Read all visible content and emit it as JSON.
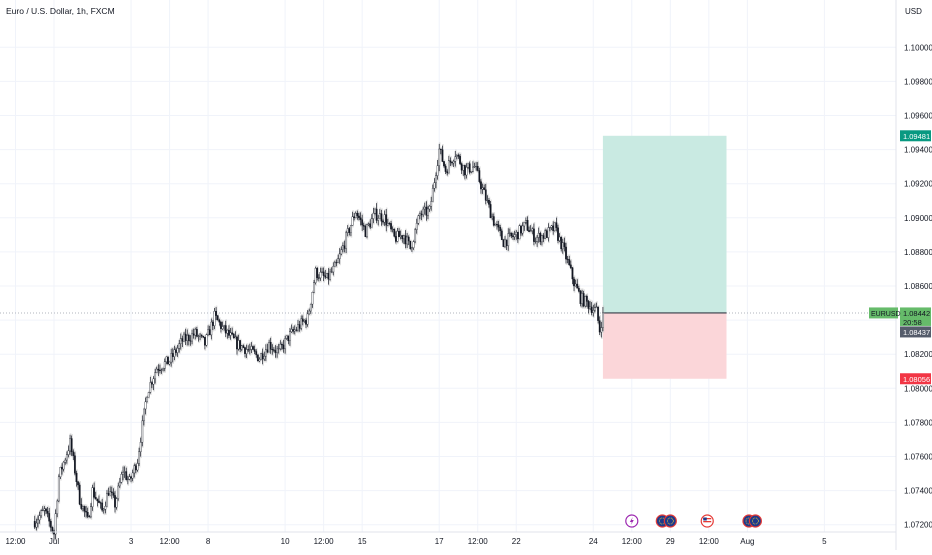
{
  "header": {
    "symbol_title": "Euro / U.S. Dollar, 1h, FXCM"
  },
  "currency_label": "USD",
  "colors": {
    "grid": "#f0f3fa",
    "axis_text": "#131722",
    "up_candle": "#ffffff",
    "down_candle": "#131722",
    "wick": "#131722",
    "ghost": "#c8c8c8",
    "profit_zone": "#c9eae2",
    "loss_zone": "#fbd6d9",
    "target_label_bg": "#089981",
    "stop_label_bg": "#f23645",
    "price_label_bg": "#66bb6a",
    "last_close_bg": "#555c6b",
    "entry_line": "#363a45"
  },
  "chart_data": {
    "type": "candlestick",
    "ylim": [
      1.0718,
      1.1022
    ],
    "y_ticks": [
      "1.10000",
      "1.09800",
      "1.09600",
      "1.09400",
      "1.09200",
      "1.09000",
      "1.08800",
      "1.08600",
      "1.08200",
      "1.08000",
      "1.07800",
      "1.07600",
      "1.07400",
      "1.07200"
    ],
    "x_ticks": [
      {
        "label": "12:00",
        "i": -12
      },
      {
        "label": "Jul",
        "i": 12
      },
      {
        "label": "3",
        "i": 60
      },
      {
        "label": "12:00",
        "i": 84
      },
      {
        "label": "8",
        "i": 108
      },
      {
        "label": "10",
        "i": 156
      },
      {
        "label": "12:00",
        "i": 180
      },
      {
        "label": "15",
        "i": 204
      },
      {
        "label": "17",
        "i": 252
      },
      {
        "label": "12:00",
        "i": 276
      },
      {
        "label": "22",
        "i": 300
      },
      {
        "label": "24",
        "i": 348
      },
      {
        "label": "12:00",
        "i": 372
      },
      {
        "label": "29",
        "i": 396
      },
      {
        "label": "12:00",
        "i": 420
      },
      {
        "label": "Aug",
        "i": 444
      },
      {
        "label": "5",
        "i": 492
      }
    ],
    "i_range": [
      -19,
      531
    ],
    "anchors": [
      [
        0,
        1.0722
      ],
      [
        6,
        1.0728
      ],
      [
        12,
        1.0715
      ],
      [
        15,
        1.0748
      ],
      [
        22,
        1.0768
      ],
      [
        25,
        1.0752
      ],
      [
        28,
        1.0735
      ],
      [
        33,
        1.0722
      ],
      [
        36,
        1.074
      ],
      [
        42,
        1.0728
      ],
      [
        46,
        1.074
      ],
      [
        50,
        1.0732
      ],
      [
        55,
        1.0752
      ],
      [
        59,
        1.0745
      ],
      [
        64,
        1.0758
      ],
      [
        70,
        1.0798
      ],
      [
        76,
        1.0812
      ],
      [
        84,
        1.0816
      ],
      [
        92,
        1.0828
      ],
      [
        100,
        1.0832
      ],
      [
        106,
        1.0826
      ],
      [
        112,
        1.0842
      ],
      [
        118,
        1.0834
      ],
      [
        126,
        1.0826
      ],
      [
        134,
        1.0822
      ],
      [
        140,
        1.0818
      ],
      [
        146,
        1.0826
      ],
      [
        152,
        1.0821
      ],
      [
        158,
        1.083
      ],
      [
        164,
        1.0836
      ],
      [
        170,
        1.0841
      ],
      [
        175,
        1.0868
      ],
      [
        182,
        1.0864
      ],
      [
        188,
        1.0872
      ],
      [
        194,
        1.0888
      ],
      [
        200,
        1.0904
      ],
      [
        206,
        1.0892
      ],
      [
        212,
        1.0902
      ],
      [
        218,
        1.09
      ],
      [
        224,
        1.0888
      ],
      [
        230,
        1.089
      ],
      [
        234,
        1.0882
      ],
      [
        240,
        1.0902
      ],
      [
        246,
        1.0904
      ],
      [
        252,
        1.094
      ],
      [
        256,
        1.0928
      ],
      [
        262,
        1.0938
      ],
      [
        268,
        1.0928
      ],
      [
        274,
        1.093
      ],
      [
        280,
        1.0914
      ],
      [
        286,
        1.0898
      ],
      [
        292,
        1.0886
      ],
      [
        296,
        1.0888
      ],
      [
        300,
        1.089
      ],
      [
        306,
        1.0896
      ],
      [
        312,
        1.0888
      ],
      [
        318,
        1.089
      ],
      [
        324,
        1.0894
      ],
      [
        330,
        1.088
      ],
      [
        336,
        1.0862
      ],
      [
        340,
        1.0853
      ],
      [
        344,
        1.085
      ],
      [
        350,
        1.0845
      ],
      [
        352,
        1.0834
      ],
      [
        354,
        1.0844
      ]
    ],
    "last_index": 354,
    "position": {
      "type": "long",
      "start_i": 354,
      "end_i": 431,
      "entry": 1.08442,
      "target": 1.09481,
      "stop": 1.08056
    },
    "price_labels": {
      "target": "1.09481",
      "current": "1.08442",
      "countdown": "20:58",
      "last_close": "1.08437",
      "stop": "1.08056",
      "symbol": "EURUSD"
    },
    "events": [
      {
        "i": 372,
        "icon": "lightning-event-icon"
      },
      {
        "i": 391,
        "icon": "eu-flag-event-icon"
      },
      {
        "i": 396,
        "icon": "eu-flag-event-icon"
      },
      {
        "i": 419,
        "icon": "us-flag-event-icon"
      },
      {
        "i": 445,
        "icon": "eu-flag-event-icon"
      },
      {
        "i": 449,
        "icon": "eu-flag-event-icon"
      }
    ]
  }
}
